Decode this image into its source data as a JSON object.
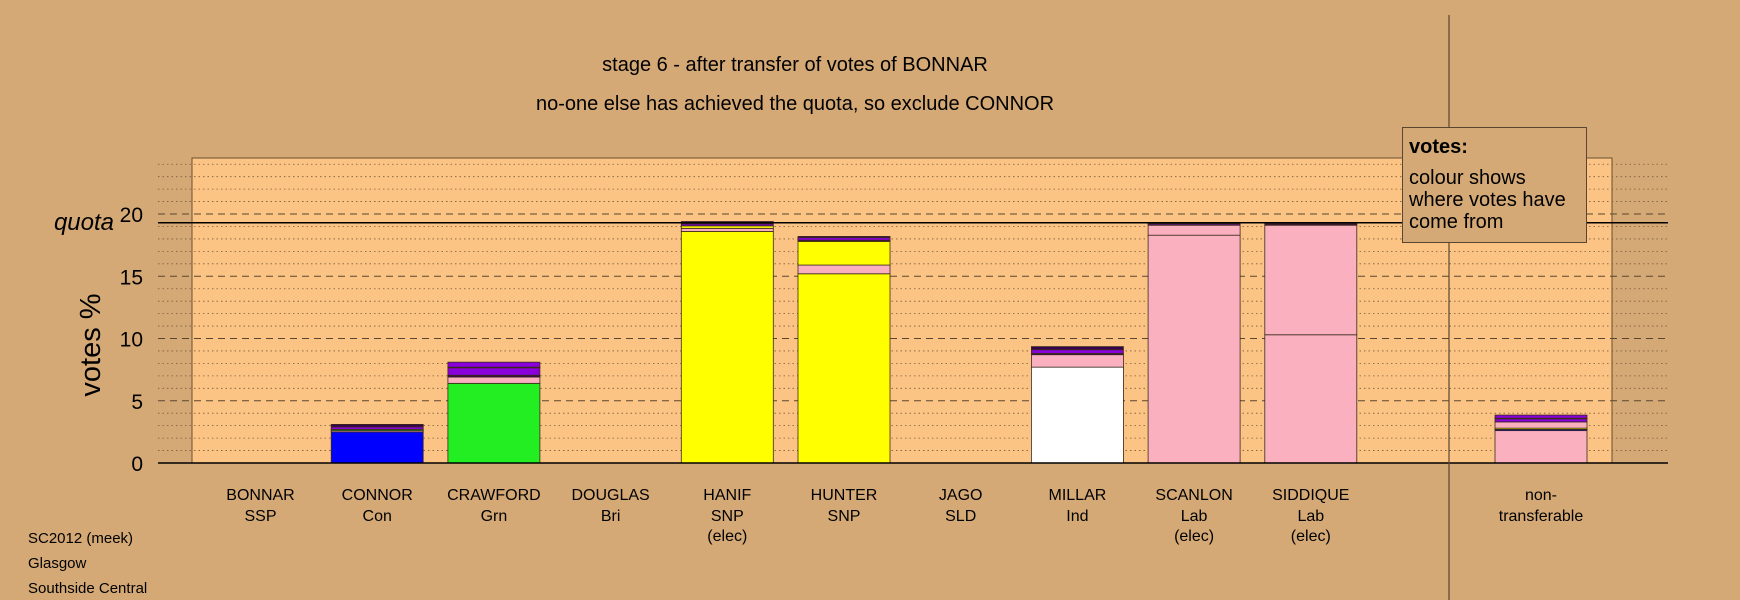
{
  "titles": {
    "line1": "stage 6 - after transfer of votes of BONNAR",
    "line2": "no-one else has achieved the quota, so exclude CONNOR"
  },
  "legend": {
    "title": "votes:",
    "text": "colour shows where votes have come from"
  },
  "footer": {
    "line1": "SC2012 (meek)",
    "line2": "Glasgow",
    "line3": "Southside Central"
  },
  "colors": {
    "background": "#d4a976",
    "plot_area": "#fcc484",
    "SSP": "#ff2020",
    "Con": "#0000ff",
    "Grn": "#22ee22",
    "SNP": "#ffff00",
    "Ind": "#ffffff",
    "Lab": "#fbb0c0",
    "transfer_purple": "#8a00dd",
    "transfer_dark": "#3a0050"
  },
  "chart_data": {
    "type": "bar",
    "stacked": true,
    "ylabel": "votes %",
    "ylim": [
      0,
      24.5
    ],
    "yticks": [
      0,
      5,
      10,
      15,
      20
    ],
    "quota": 19.3,
    "quota_label": "quota",
    "grid": true,
    "legend_position": "top-right",
    "categories": [
      {
        "name": "BONNAR",
        "party": "SSP",
        "elected": false,
        "segments": []
      },
      {
        "name": "CONNOR",
        "party": "Con",
        "elected": false,
        "segments": [
          {
            "source": "Con",
            "value": 2.5
          },
          {
            "source": "Lab",
            "value": 0.1
          },
          {
            "source": "Grn",
            "value": 0.1
          },
          {
            "source": "transfer_purple",
            "value": 0.2
          },
          {
            "source": "transfer_dark",
            "value": 0.2
          }
        ]
      },
      {
        "name": "CRAWFORD",
        "party": "Grn",
        "elected": false,
        "segments": [
          {
            "source": "Grn",
            "value": 6.4
          },
          {
            "source": "Lab",
            "value": 0.5
          },
          {
            "source": "transfer_dark",
            "value": 0.15
          },
          {
            "source": "transfer_purple",
            "value": 0.6
          },
          {
            "source": "transfer_dark",
            "value": 0.05
          },
          {
            "source": "transfer_purple",
            "value": 0.4
          }
        ]
      },
      {
        "name": "DOUGLAS",
        "party": "Bri",
        "elected": false,
        "segments": []
      },
      {
        "name": "HANIF",
        "party": "SNP",
        "elected": true,
        "segments": [
          {
            "source": "SNP",
            "value": 18.6
          },
          {
            "source": "Lab",
            "value": 0.25
          },
          {
            "source": "SNP",
            "value": 0.2
          },
          {
            "source": "transfer_purple",
            "value": 0.15
          },
          {
            "source": "transfer_dark",
            "value": 0.1
          },
          {
            "source": "transfer_purple",
            "value": 0.1
          }
        ]
      },
      {
        "name": "HUNTER",
        "party": "SNP",
        "elected": false,
        "segments": [
          {
            "source": "SNP",
            "value": 15.2
          },
          {
            "source": "Lab",
            "value": 0.7
          },
          {
            "source": "SNP",
            "value": 1.9
          },
          {
            "source": "transfer_dark",
            "value": 0.1
          },
          {
            "source": "transfer_purple",
            "value": 0.2
          },
          {
            "source": "transfer_dark",
            "value": 0.1
          }
        ]
      },
      {
        "name": "JAGO",
        "party": "SLD",
        "elected": false,
        "segments": []
      },
      {
        "name": "MILLAR",
        "party": "Ind",
        "elected": false,
        "segments": [
          {
            "source": "Ind",
            "value": 7.7
          },
          {
            "source": "Lab",
            "value": 1.0
          },
          {
            "source": "transfer_dark",
            "value": 0.1
          },
          {
            "source": "transfer_purple",
            "value": 0.3
          },
          {
            "source": "transfer_dark",
            "value": 0.25
          }
        ]
      },
      {
        "name": "SCANLON",
        "party": "Lab",
        "elected": true,
        "segments": [
          {
            "source": "Lab",
            "value": 18.3
          },
          {
            "source": "Lab",
            "value": 0.8
          },
          {
            "source": "transfer_purple",
            "value": 0.1
          },
          {
            "source": "transfer_dark",
            "value": 0.05
          },
          {
            "source": "transfer_purple",
            "value": 0.05
          }
        ]
      },
      {
        "name": "SIDDIQUE",
        "party": "Lab",
        "elected": true,
        "segments": [
          {
            "source": "Lab",
            "value": 10.3
          },
          {
            "source": "Lab",
            "value": 8.8
          },
          {
            "source": "transfer_dark",
            "value": 0.1
          },
          {
            "source": "transfer_purple",
            "value": 0.1
          }
        ]
      }
    ],
    "non_transferable": {
      "label_line1": "non-",
      "label_line2": "transferable",
      "segments": [
        {
          "source": "Lab",
          "value": 2.6
        },
        {
          "source": "Con",
          "value": 0.1
        },
        {
          "source": "SNP",
          "value": 0.1
        },
        {
          "source": "Lab",
          "value": 0.5
        },
        {
          "source": "transfer_purple",
          "value": 0.25
        },
        {
          "source": "transfer_dark",
          "value": 0.05
        },
        {
          "source": "transfer_purple",
          "value": 0.25
        }
      ]
    },
    "elected_label": "(elec)"
  }
}
